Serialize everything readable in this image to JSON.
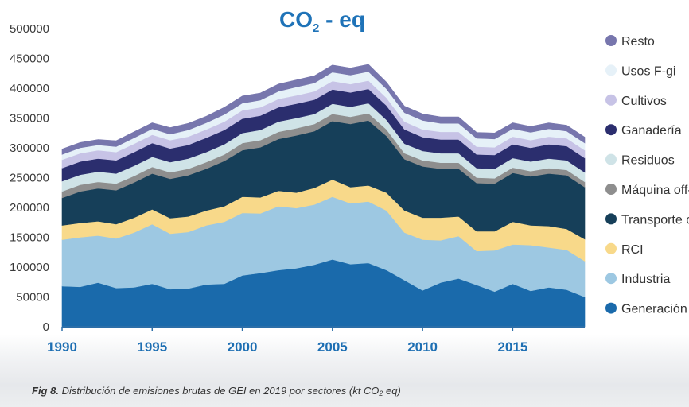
{
  "chart_data": {
    "type": "area",
    "stacked": true,
    "title": "CO",
    "title_subscript": "2",
    "title_suffix": " - eq",
    "ylim": [
      0,
      500000
    ],
    "yticks": [
      0,
      50000,
      100000,
      150000,
      200000,
      250000,
      300000,
      350000,
      400000,
      450000,
      500000
    ],
    "ytick_labels": [
      "0",
      "50000",
      "100000",
      "150000",
      "200000",
      "250000",
      "300000",
      "350000",
      "400000",
      "450000",
      "500000"
    ],
    "xlim": [
      1990,
      2019
    ],
    "xticks": [
      1990,
      1995,
      2000,
      2005,
      2010,
      2015
    ],
    "xtick_labels": [
      "1990",
      "1995",
      "2000",
      "2005",
      "2010",
      "2015"
    ],
    "legend_position": "right",
    "x": [
      1990,
      1991,
      1992,
      1993,
      1994,
      1995,
      1996,
      1997,
      1998,
      1999,
      2000,
      2001,
      2002,
      2003,
      2004,
      2005,
      2006,
      2007,
      2008,
      2009,
      2010,
      2011,
      2012,
      2013,
      2014,
      2015,
      2016,
      2017,
      2018,
      2019
    ],
    "series": [
      {
        "name": "Generación e",
        "color": "#1a6aab",
        "values": [
          68000,
          67000,
          74000,
          65000,
          66000,
          72000,
          63000,
          64000,
          71000,
          72000,
          86000,
          90000,
          95000,
          98000,
          104000,
          113000,
          105000,
          107000,
          95000,
          78000,
          61000,
          74000,
          81000,
          70000,
          59000,
          72000,
          60000,
          66000,
          62000,
          50000
        ]
      },
      {
        "name": "Industria",
        "color": "#9dc8e2",
        "values": [
          78000,
          83000,
          79000,
          83000,
          92000,
          100000,
          93000,
          95000,
          99000,
          104000,
          105000,
          100000,
          107000,
          101000,
          101000,
          105000,
          102000,
          103000,
          100000,
          80000,
          85000,
          71000,
          71000,
          57000,
          69000,
          66000,
          77000,
          67000,
          67000,
          60000
        ]
      },
      {
        "name": "RCI",
        "color": "#f8d98a",
        "values": [
          24000,
          24000,
          24000,
          24000,
          25000,
          25000,
          26000,
          26000,
          25000,
          26000,
          27000,
          27000,
          26000,
          26000,
          28000,
          29000,
          27000,
          27000,
          30000,
          37000,
          37000,
          38000,
          33000,
          33000,
          32000,
          38000,
          33000,
          36000,
          35000,
          37000
        ]
      },
      {
        "name": "Transporte ca",
        "color": "#163f59",
        "values": [
          46000,
          53000,
          55000,
          57000,
          59000,
          60000,
          66000,
          69000,
          70000,
          76000,
          78000,
          84000,
          87000,
          96000,
          95000,
          98000,
          106000,
          109000,
          95000,
          86000,
          86000,
          82000,
          80000,
          81000,
          80000,
          82000,
          82000,
          88000,
          90000,
          87000
        ]
      },
      {
        "name": "Máquina off-",
        "color": "#8e8e8e",
        "values": [
          11000,
          11000,
          11000,
          11000,
          11000,
          11000,
          11000,
          11000,
          11000,
          11000,
          12000,
          12000,
          12000,
          12000,
          12000,
          12000,
          12000,
          12000,
          11000,
          10000,
          10000,
          10000,
          10000,
          9000,
          9000,
          9000,
          9000,
          9000,
          9000,
          9000
        ]
      },
      {
        "name": "Residuos",
        "color": "#cfe3e7",
        "values": [
          17000,
          17000,
          17000,
          17000,
          17000,
          17000,
          17000,
          17000,
          17000,
          17000,
          17000,
          17000,
          17000,
          17000,
          17000,
          17000,
          17000,
          17000,
          16000,
          16000,
          16000,
          16000,
          16000,
          16000,
          16000,
          16000,
          16000,
          16000,
          16000,
          16000
        ]
      },
      {
        "name": "Ganadería",
        "color": "#2b2e6e",
        "values": [
          22000,
          22000,
          22000,
          22000,
          23000,
          23000,
          23000,
          23000,
          24000,
          24000,
          24000,
          24000,
          24000,
          24000,
          24000,
          24000,
          24000,
          24000,
          24000,
          24000,
          23000,
          23000,
          23000,
          23000,
          23000,
          23000,
          23000,
          24000,
          24000,
          24000
        ]
      },
      {
        "name": "Cultivos",
        "color": "#c7c3e6",
        "values": [
          14000,
          14000,
          14000,
          14000,
          14000,
          14000,
          14000,
          14000,
          14000,
          14000,
          14000,
          14000,
          14000,
          14000,
          14000,
          14000,
          14000,
          14000,
          13000,
          13000,
          13000,
          13000,
          13000,
          13000,
          13000,
          13000,
          13000,
          13000,
          13000,
          13000
        ]
      },
      {
        "name": "Usos F-gi",
        "color": "#e6f1f8",
        "values": [
          9000,
          9000,
          9000,
          9000,
          10000,
          10000,
          10000,
          11000,
          11000,
          12000,
          12000,
          12000,
          13000,
          14000,
          14000,
          15000,
          15000,
          15000,
          15000,
          15000,
          15000,
          14000,
          14000,
          14000,
          14000,
          13000,
          13000,
          13000,
          12000,
          12000
        ]
      },
      {
        "name": "Resto",
        "color": "#7776ad",
        "values": [
          9000,
          9000,
          9000,
          10000,
          10000,
          10000,
          11000,
          11000,
          11000,
          12000,
          12000,
          12000,
          12000,
          12000,
          12000,
          12000,
          12000,
          12000,
          11000,
          11000,
          11000,
          11000,
          11000,
          10000,
          10000,
          10000,
          10000,
          10000,
          10000,
          10000
        ]
      }
    ]
  },
  "caption": {
    "fig_label": "Fig 8.",
    "text_before_sub": " Distribución de emisiones brutas de GEI en 2019 por sectores (kt CO",
    "sub": "2",
    "text_after_sub": " eq)"
  }
}
